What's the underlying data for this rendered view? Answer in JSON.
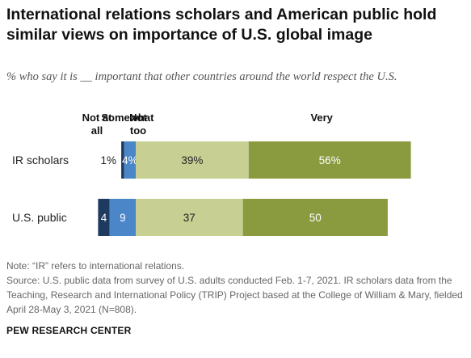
{
  "title": "International relations scholars and American public hold similar views on importance of U.S. global image",
  "subtitle": "% who say it is __ important that other countries around the world respect the U.S.",
  "notes": {
    "note": "Note: “IR” refers to international relations.",
    "source": "Source: U.S. public data from survey of U.S. adults conducted Feb. 1-7, 2021. IR scholars data from the Teaching, Research and International Policy (TRIP) Project based at the College of William & Mary, fielded April 28-May 3, 2021 (N=808)."
  },
  "org": "PEW RESEARCH CENTER",
  "chart_data": {
    "type": "bar",
    "orientation": "horizontal",
    "stacked": true,
    "categories": [
      "IR scholars",
      "U.S. public"
    ],
    "column_headers": {
      "not_at_all": [
        "Not at",
        "all"
      ],
      "not_too": [
        "Not",
        "too"
      ],
      "somewhat": "Somewhat",
      "very": "Very"
    },
    "series": [
      {
        "key": "not_at_all",
        "values": [
          1,
          4
        ],
        "labels": [
          "1%",
          "4"
        ],
        "color": "#1f3a5f"
      },
      {
        "key": "not_too",
        "values": [
          4,
          9
        ],
        "labels": [
          "4%",
          "9"
        ],
        "color": "#4a86c8"
      },
      {
        "key": "somewhat",
        "values": [
          39,
          37
        ],
        "labels": [
          "39%",
          "37"
        ],
        "color": "#c7cf93"
      },
      {
        "key": "very",
        "values": [
          56,
          50
        ],
        "labels": [
          "56%",
          "50"
        ],
        "color": "#8a9a3f"
      }
    ]
  }
}
